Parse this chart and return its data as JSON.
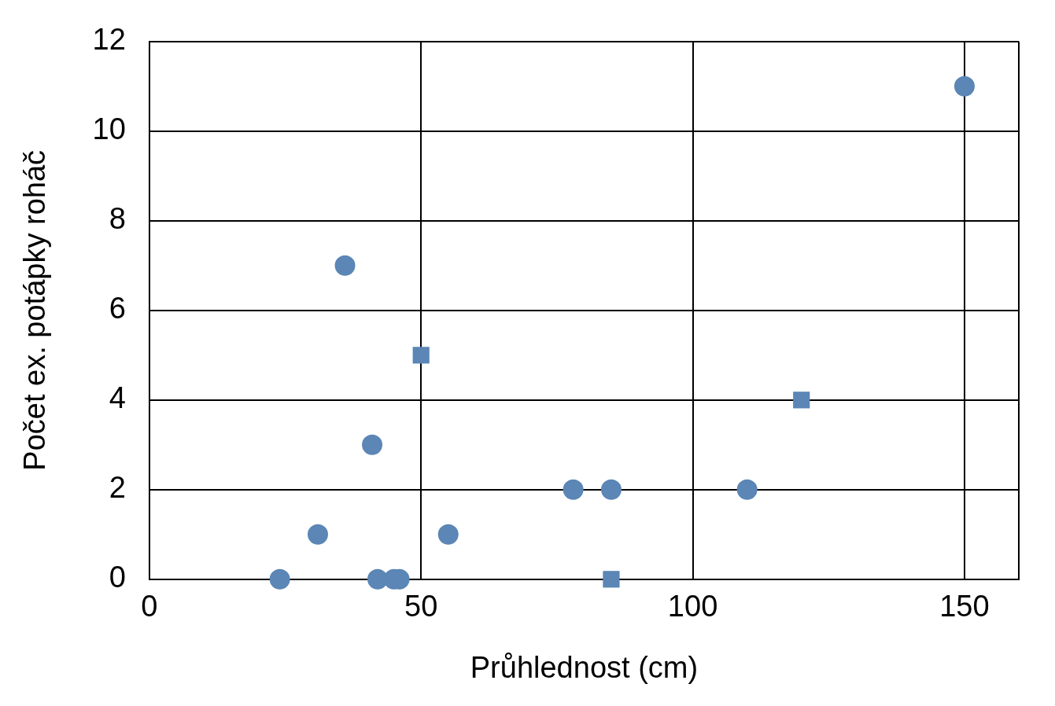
{
  "chart_data": {
    "type": "scatter",
    "xlabel": "Průhlednost (cm)",
    "ylabel": "Počet ex. potápky roháč",
    "xlim": [
      0,
      160
    ],
    "xticks": [
      0,
      50,
      100,
      150
    ],
    "ylim": [
      0,
      12
    ],
    "yticks": [
      0,
      2,
      4,
      6,
      8,
      10,
      12
    ],
    "grid": true,
    "legend": false,
    "series": [
      {
        "marker": "circle",
        "color": "#5b86b5",
        "x": [
          24,
          31,
          36,
          41,
          42,
          45,
          46,
          55,
          78,
          85,
          110,
          150
        ],
        "values": [
          0,
          1,
          7,
          3,
          0,
          0,
          0,
          1,
          2,
          2,
          2,
          11
        ]
      },
      {
        "marker": "square",
        "color": "#5b86b5",
        "x": [
          50,
          120,
          85
        ],
        "values": [
          5,
          4,
          0
        ]
      }
    ]
  }
}
